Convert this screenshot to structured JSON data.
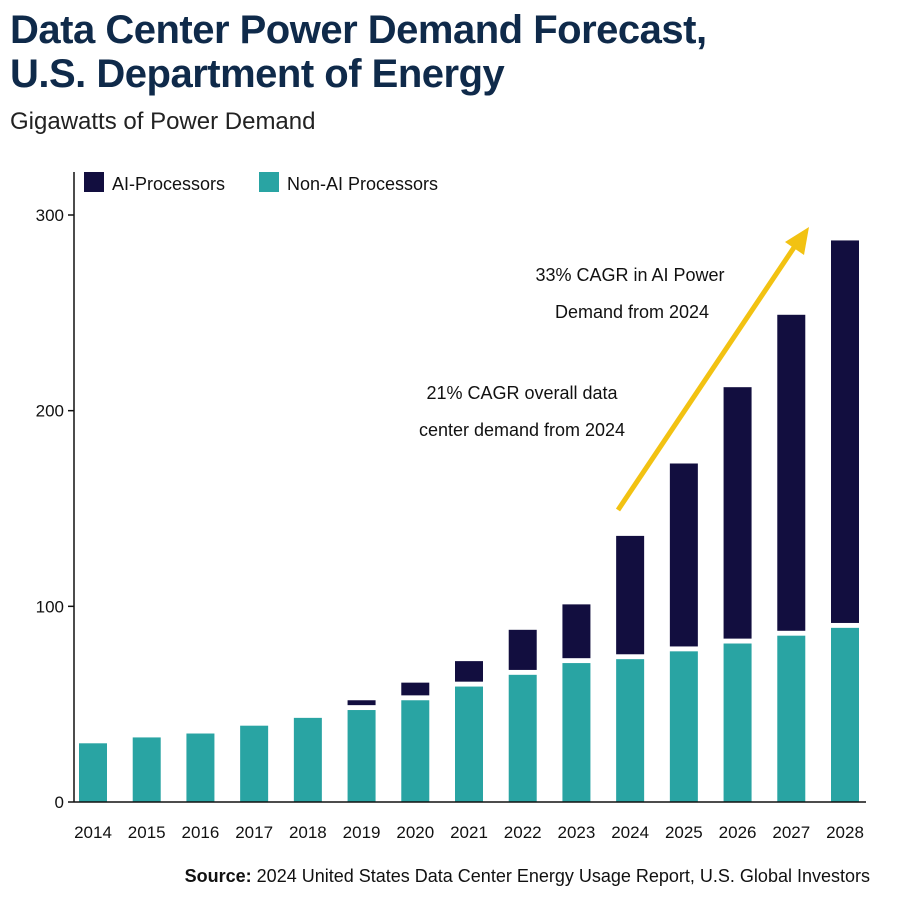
{
  "title_line1": "Data Center Power Demand Forecast,",
  "title_line2": "U.S. Department of Energy",
  "subtitle": "Gigawatts of Power Demand",
  "source_label": "Source:",
  "source_text": "2024 United States Data Center Energy Usage Report, U.S. Global Investors",
  "colors": {
    "ai": "#120e3f",
    "non_ai": "#29a4a3",
    "arrow": "#f2c212",
    "title": "#0f2a4a"
  },
  "chart_data": {
    "type": "bar",
    "stacked": true,
    "title": "Data Center Power Demand Forecast, U.S. Department of Energy",
    "ylabel": "Gigawatts of Power Demand",
    "xlabel": "",
    "ylim": [
      0,
      320
    ],
    "yticks": [
      0,
      100,
      200,
      300
    ],
    "legend_position": "top-left",
    "categories": [
      "2014",
      "2015",
      "2016",
      "2017",
      "2018",
      "2019",
      "2020",
      "2021",
      "2022",
      "2023",
      "2024",
      "2025",
      "2026",
      "2027",
      "2028"
    ],
    "series": [
      {
        "name": "Non-AI Processors",
        "values": [
          30,
          33,
          35,
          39,
          43,
          47,
          52,
          59,
          65,
          71,
          73,
          77,
          81,
          85,
          89
        ]
      },
      {
        "name": "AI-Processors",
        "values": [
          0,
          0,
          0,
          0,
          0,
          5,
          9,
          13,
          23,
          30,
          63,
          96,
          131,
          164,
          198
        ]
      }
    ],
    "legend": [
      "AI-Processors",
      "Non-AI Processors"
    ],
    "annotations": [
      {
        "lines": [
          "33% CAGR in AI Power",
          "Demand from 2024"
        ]
      },
      {
        "lines": [
          "21% CAGR overall data",
          "center demand from 2024"
        ]
      }
    ]
  }
}
